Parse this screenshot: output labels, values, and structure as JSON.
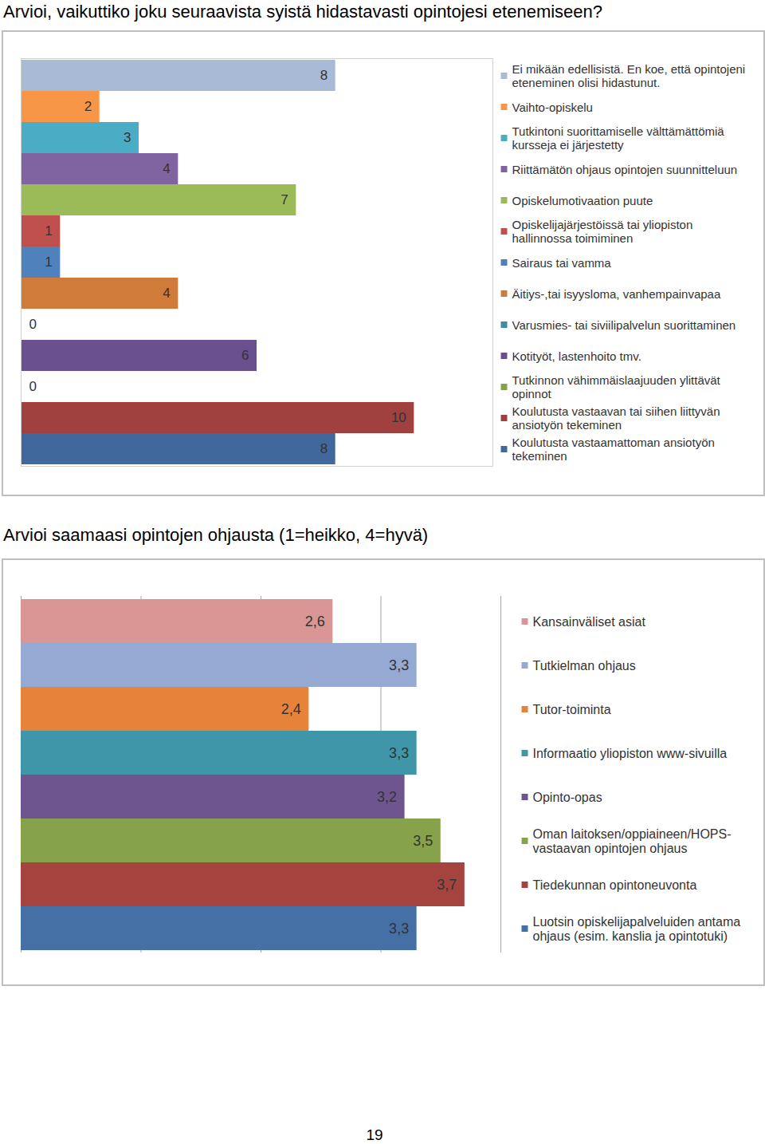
{
  "chart_data": [
    {
      "type": "bar",
      "orientation": "horizontal",
      "title": "Arvioi, vaikuttiko joku seuraavista syistä hidastavasti opintojesi etenemiseen?",
      "categories": [
        "Ei mikään edellisistä. En koe, että opintojeni eteneminen olisi hidastunut.",
        "Vaihto-opiskelu",
        "Tutkintoni suorittamiselle välttämättömiä kursseja ei järjestetty",
        "Riittämätön ohjaus opintojen suunnitteluun",
        "Opiskelumotivaation puute",
        "Opiskelijajärjestöissä tai yliopiston hallinnossa toimiminen",
        "Sairaus tai vamma",
        "Äitiys-,tai isyysloma, vanhempainvapaa",
        "Varusmies- tai siviilipalvelun suorittaminen",
        "Kotityöt, lastenhoito tmv.",
        "Tutkinnon vähimmäislaajuuden ylittävät opinnot",
        "Koulutusta vastaavan tai siihen liittyvän ansiotyön tekeminen",
        "Koulutusta vastaamattoman ansiotyön tekeminen"
      ],
      "values": [
        8,
        2,
        3,
        4,
        7,
        1,
        1,
        4,
        0,
        6,
        0,
        10,
        8
      ],
      "colors": [
        "#a9bad6",
        "#f79646",
        "#4bacc6",
        "#8064a2",
        "#9bbb59",
        "#c0504d",
        "#4f81bd",
        "#d07b3a",
        "#3a8ea3",
        "#6b5090",
        "#86a24a",
        "#a0413f",
        "#41689c"
      ],
      "xlim": [
        0,
        12
      ],
      "tick_labels": false,
      "grid": false,
      "data_labels": true,
      "legend": "right"
    },
    {
      "type": "bar",
      "orientation": "horizontal",
      "title": "Arvioi saamaasi opintojen ohjausta (1=heikko, 4=hyvä)",
      "categories": [
        "Kansainväliset asiat",
        "Tutkielman ohjaus",
        "Tutor-toiminta",
        "Informaatio yliopiston www-sivuilla",
        "Opinto-opas",
        "Oman laitoksen/oppiaineen/HOPS-vastaavan opintojen ohjaus",
        "Tiedekunnan opintoneuvonta",
        "Luotsin opiskelijapalveluiden antama ohjaus (esim. kanslia ja opintotuki)"
      ],
      "values": [
        2.6,
        3.3,
        2.4,
        3.3,
        3.2,
        3.5,
        3.7,
        3.3
      ],
      "value_labels": [
        "2,6",
        "3,3",
        "2,4",
        "3,3",
        "3,2",
        "3,5",
        "3,7",
        "3,3"
      ],
      "colors": [
        "#d99694",
        "#95a9d2",
        "#e6823a",
        "#3f96a8",
        "#6e5590",
        "#86a24a",
        "#a5443f",
        "#4470a6"
      ],
      "xlim": [
        0,
        4
      ],
      "xticks": [
        0,
        1,
        2,
        3,
        4
      ],
      "tick_labels": false,
      "grid": true,
      "data_labels": true,
      "legend": "right"
    }
  ],
  "page_number": "19"
}
